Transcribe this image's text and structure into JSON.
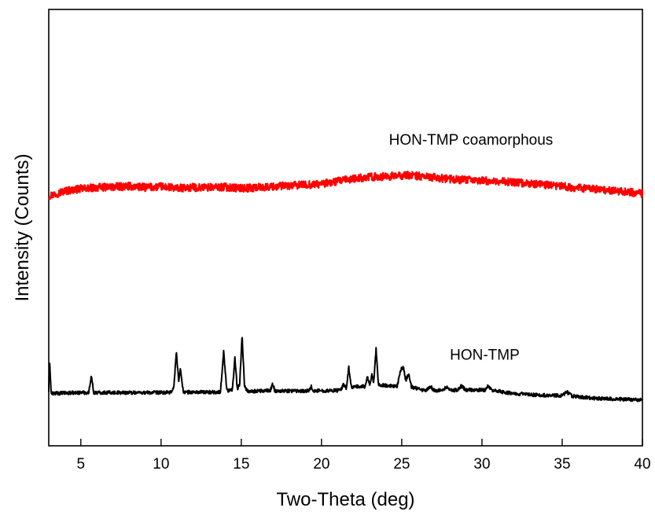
{
  "chart_data": {
    "type": "line",
    "xlabel": "Two-Theta (deg)",
    "ylabel": "Intensity (Counts)",
    "xlim": [
      3,
      40
    ],
    "ylim": [
      0,
      100
    ],
    "y_tick_labels_shown": false,
    "x_ticks": [
      5,
      10,
      15,
      20,
      25,
      30,
      35,
      40
    ],
    "x_tick_labels": [
      "5",
      "10",
      "15",
      "20",
      "25",
      "30",
      "35",
      "40"
    ],
    "grid": false,
    "series": [
      {
        "name": "HON-TMP coamorphous",
        "color": "#ff0000",
        "label_anchor_x": 24.2,
        "label_anchor_y": 69,
        "noise": 0.9,
        "points": [
          [
            3.0,
            57.3
          ],
          [
            3.5,
            57.8
          ],
          [
            4.0,
            58.4
          ],
          [
            5.0,
            58.9
          ],
          [
            6.0,
            59.2
          ],
          [
            7.0,
            59.3
          ],
          [
            8.0,
            59.5
          ],
          [
            9.0,
            59.2
          ],
          [
            10.0,
            59.4
          ],
          [
            11.0,
            59.0
          ],
          [
            12.0,
            59.2
          ],
          [
            13.0,
            59.2
          ],
          [
            14.0,
            59.3
          ],
          [
            15.0,
            59.0
          ],
          [
            16.0,
            59.2
          ],
          [
            17.0,
            59.4
          ],
          [
            18.0,
            59.6
          ],
          [
            19.0,
            59.8
          ],
          [
            20.0,
            60.0
          ],
          [
            21.0,
            60.6
          ],
          [
            22.0,
            61.2
          ],
          [
            23.0,
            61.6
          ],
          [
            24.0,
            61.7
          ],
          [
            25.0,
            61.9
          ],
          [
            25.5,
            62.0
          ],
          [
            26.5,
            61.7
          ],
          [
            27.5,
            61.3
          ],
          [
            28.5,
            61.0
          ],
          [
            30.0,
            60.8
          ],
          [
            31.5,
            60.5
          ],
          [
            33.0,
            60.1
          ],
          [
            34.5,
            59.6
          ],
          [
            36.0,
            59.1
          ],
          [
            37.5,
            58.7
          ],
          [
            39.0,
            58.2
          ],
          [
            40.0,
            57.8
          ]
        ]
      },
      {
        "name": "HON-TMP",
        "color": "#000000",
        "label_anchor_x": 28.0,
        "label_anchor_y": 19.7,
        "noise": 0.4,
        "points": [
          [
            3.0,
            12.5
          ],
          [
            3.05,
            20.0
          ],
          [
            3.15,
            12.0
          ],
          [
            5.0,
            12.2
          ],
          [
            5.5,
            12.2
          ],
          [
            5.65,
            16.2
          ],
          [
            5.8,
            12.2
          ],
          [
            10.6,
            12.2
          ],
          [
            10.8,
            13.5
          ],
          [
            10.95,
            21.5
          ],
          [
            11.1,
            15.0
          ],
          [
            11.2,
            17.4
          ],
          [
            11.4,
            12.3
          ],
          [
            13.7,
            12.3
          ],
          [
            13.9,
            21.6
          ],
          [
            14.1,
            12.6
          ],
          [
            14.45,
            12.8
          ],
          [
            14.6,
            20.5
          ],
          [
            14.75,
            13.0
          ],
          [
            14.9,
            14.2
          ],
          [
            15.05,
            25.3
          ],
          [
            15.2,
            13.6
          ],
          [
            15.4,
            12.5
          ],
          [
            16.8,
            12.6
          ],
          [
            16.95,
            14.2
          ],
          [
            17.1,
            12.6
          ],
          [
            19.2,
            12.6
          ],
          [
            19.35,
            13.6
          ],
          [
            19.5,
            12.6
          ],
          [
            21.2,
            12.7
          ],
          [
            21.35,
            14.0
          ],
          [
            21.55,
            13.2
          ],
          [
            21.7,
            18.0
          ],
          [
            21.85,
            13.5
          ],
          [
            22.7,
            13.6
          ],
          [
            22.85,
            15.8
          ],
          [
            23.0,
            14.0
          ],
          [
            23.15,
            16.3
          ],
          [
            23.25,
            14.5
          ],
          [
            23.4,
            22.2
          ],
          [
            23.55,
            14.0
          ],
          [
            24.7,
            13.5
          ],
          [
            24.95,
            17.5
          ],
          [
            25.1,
            18.0
          ],
          [
            25.25,
            15.0
          ],
          [
            25.45,
            16.5
          ],
          [
            25.6,
            13.5
          ],
          [
            26.5,
            12.6
          ],
          [
            26.8,
            13.6
          ],
          [
            27.0,
            12.7
          ],
          [
            27.6,
            12.7
          ],
          [
            27.8,
            13.6
          ],
          [
            28.0,
            12.7
          ],
          [
            28.5,
            12.8
          ],
          [
            28.7,
            13.7
          ],
          [
            29.0,
            12.8
          ],
          [
            30.2,
            12.8
          ],
          [
            30.4,
            13.8
          ],
          [
            30.6,
            12.8
          ],
          [
            31.5,
            12.2
          ],
          [
            33.0,
            11.7
          ],
          [
            35.0,
            11.5
          ],
          [
            35.3,
            12.3
          ],
          [
            35.6,
            11.4
          ],
          [
            37.0,
            10.9
          ],
          [
            38.5,
            10.7
          ],
          [
            40.0,
            10.5
          ]
        ]
      }
    ]
  }
}
